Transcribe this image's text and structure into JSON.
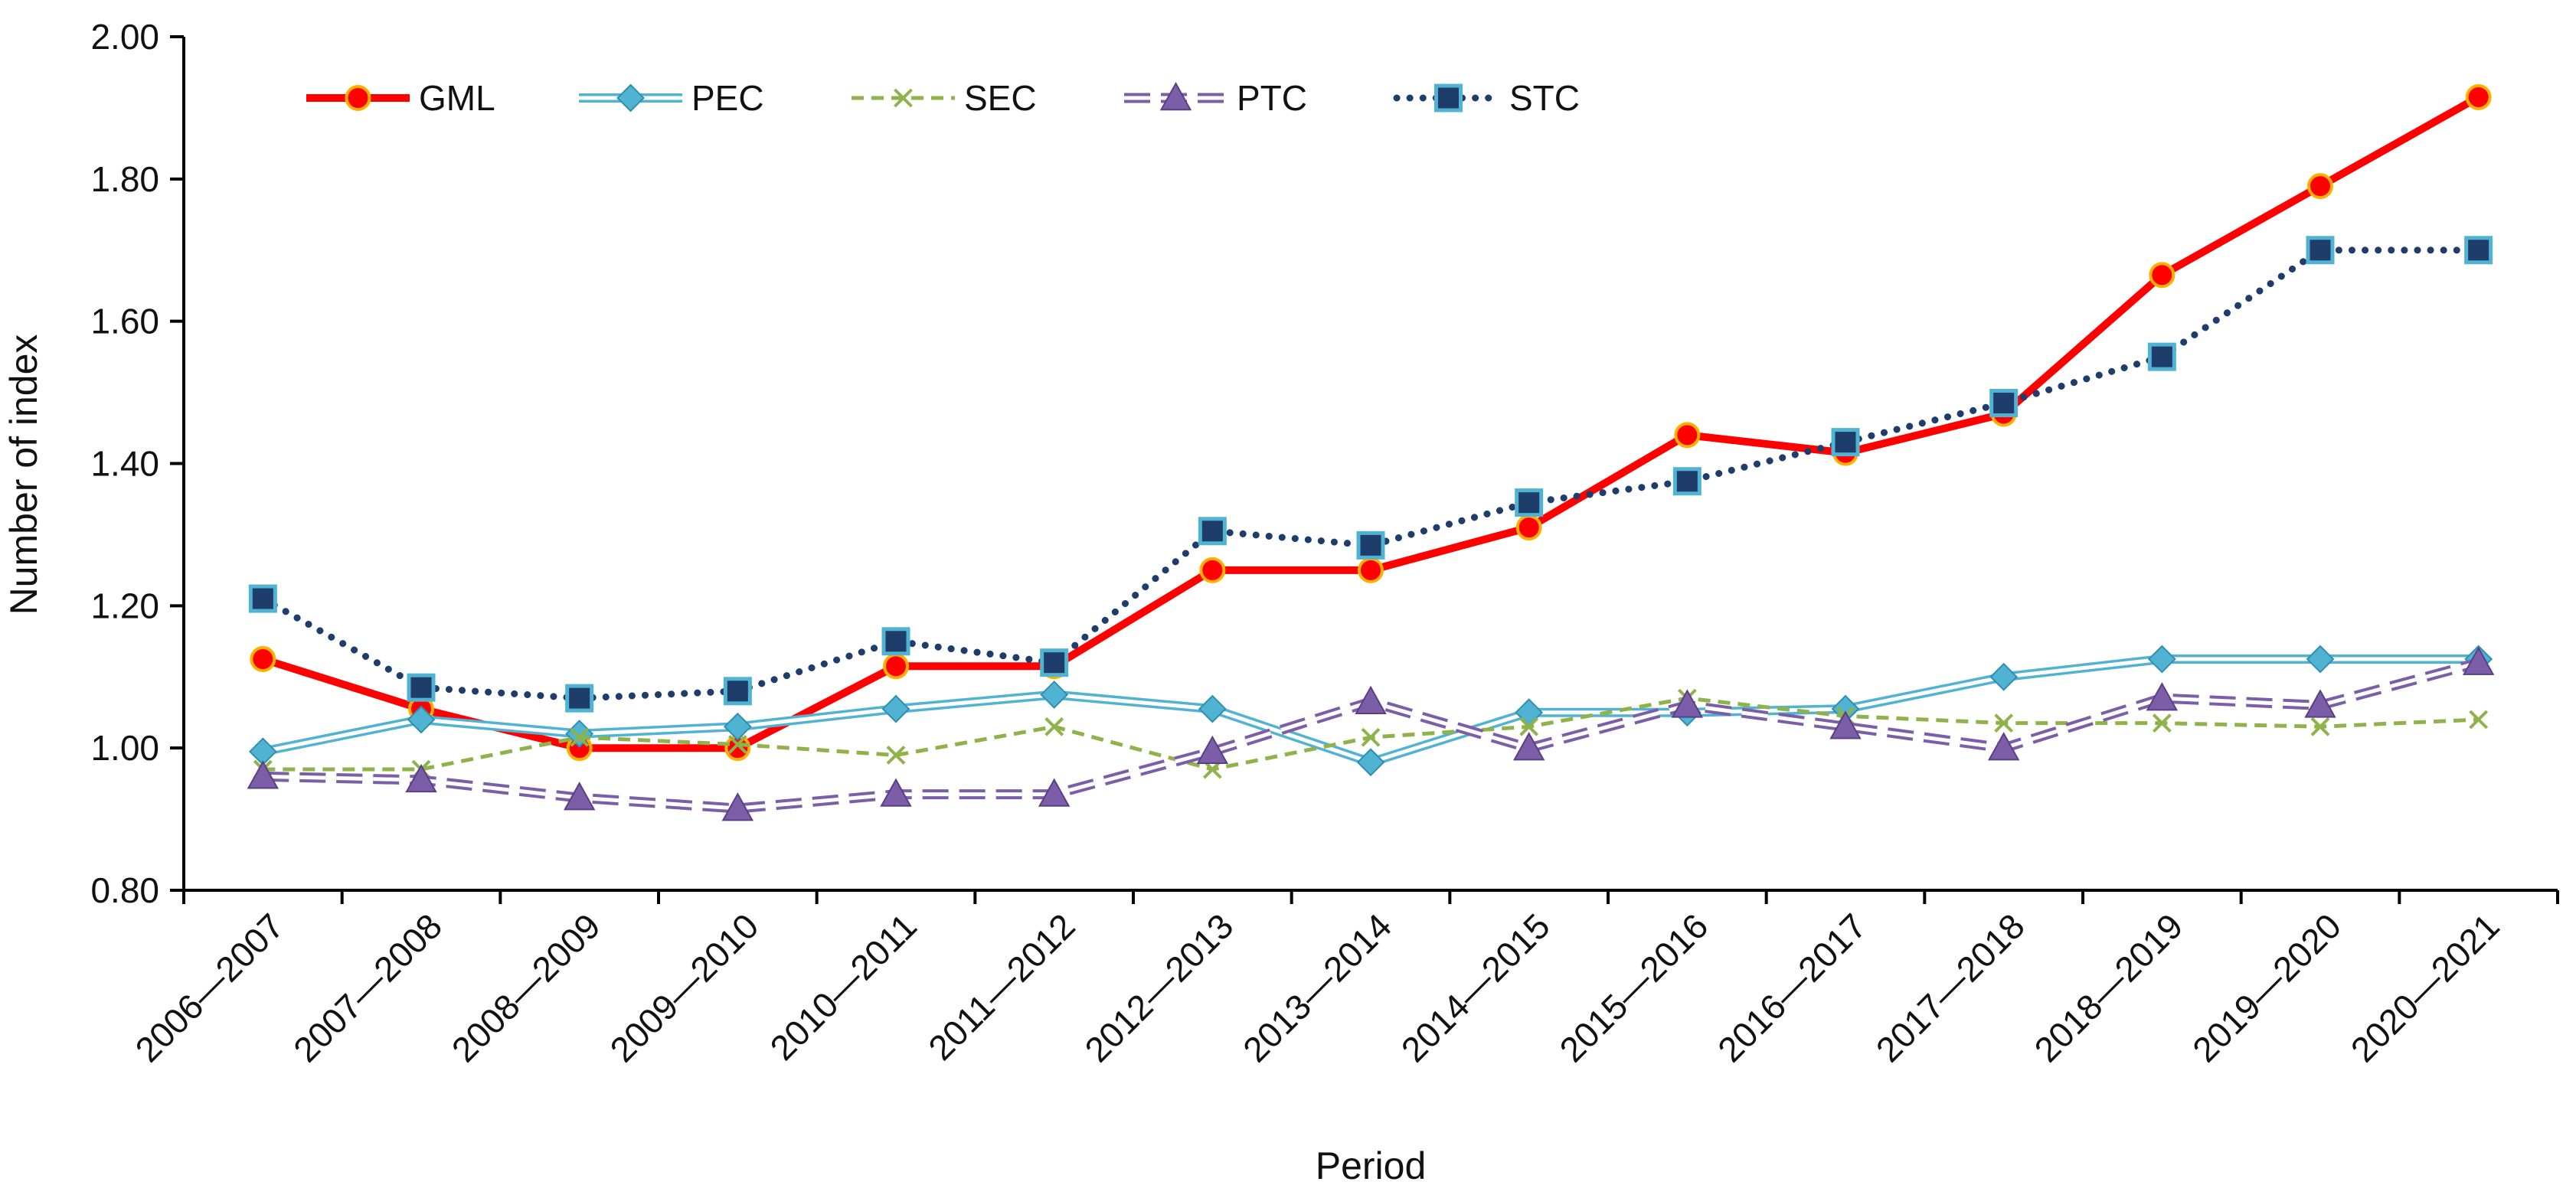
{
  "chart_data": {
    "type": "line",
    "title": "",
    "xlabel": "Period",
    "ylabel": "Number of index",
    "ylim": [
      0.8,
      2.0
    ],
    "yticks": [
      "0.80",
      "1.00",
      "1.20",
      "1.40",
      "1.60",
      "1.80",
      "2.00"
    ],
    "grid": false,
    "legend_position": "top-left",
    "categories": [
      "2006—2007",
      "2007—2008",
      "2008—2009",
      "2009—2010",
      "2010—2011",
      "2011—2012",
      "2012—2013",
      "2013—2014",
      "2014—2015",
      "2015—2016",
      "2016—2017",
      "2017—2018",
      "2018—2019",
      "2019—2020",
      "2020—2021"
    ],
    "series": [
      {
        "name": "GML",
        "color": "#ff0000",
        "marker": "circle",
        "line": "solid",
        "values": [
          1.125,
          1.055,
          1.0,
          1.0,
          1.115,
          1.115,
          1.25,
          1.25,
          1.31,
          1.44,
          1.415,
          1.47,
          1.665,
          1.79,
          1.915
        ]
      },
      {
        "name": "PEC",
        "color": "#4fb3d1",
        "marker": "diamond",
        "line": "double",
        "values": [
          0.995,
          1.04,
          1.02,
          1.03,
          1.055,
          1.075,
          1.055,
          0.98,
          1.05,
          1.05,
          1.055,
          1.1,
          1.125,
          1.125,
          1.125
        ]
      },
      {
        "name": "SEC",
        "color": "#8fb34a",
        "marker": "x",
        "line": "dashed",
        "values": [
          0.97,
          0.97,
          1.015,
          1.005,
          0.99,
          1.03,
          0.97,
          1.015,
          1.03,
          1.07,
          1.045,
          1.035,
          1.035,
          1.03,
          1.04
        ]
      },
      {
        "name": "PTC",
        "color": "#7b5ea7",
        "marker": "triangle",
        "line": "double-dashed",
        "values": [
          0.96,
          0.955,
          0.93,
          0.915,
          0.935,
          0.935,
          0.995,
          1.065,
          1.0,
          1.06,
          1.03,
          1.0,
          1.07,
          1.06,
          1.12
        ]
      },
      {
        "name": "STC",
        "color": "#1f3d6b",
        "marker": "square",
        "line": "dotted",
        "values": [
          1.21,
          1.085,
          1.07,
          1.08,
          1.15,
          1.12,
          1.305,
          1.285,
          1.345,
          1.375,
          1.43,
          1.485,
          1.55,
          1.7,
          1.7
        ]
      }
    ]
  }
}
